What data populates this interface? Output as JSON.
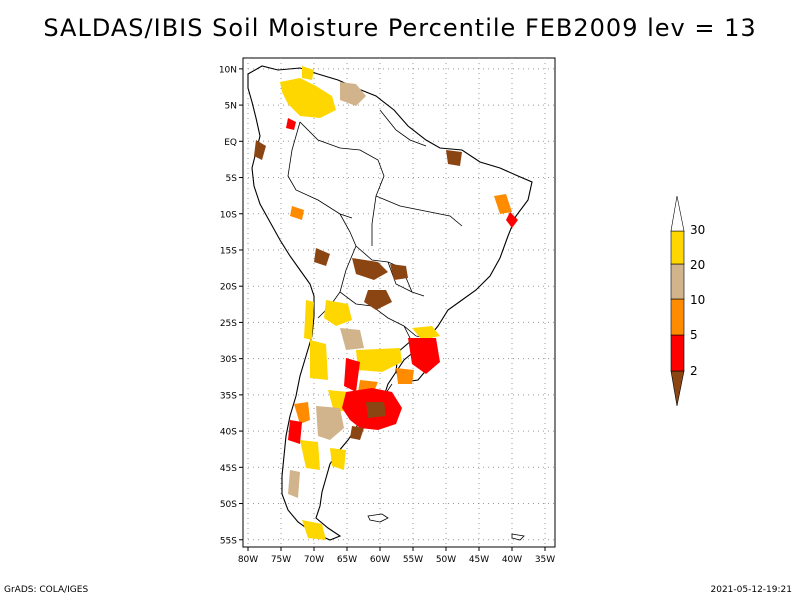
{
  "title": "SALDAS/IBIS Soil Moisture Percentile FEB2009 lev = 13",
  "lat_labels": [
    "10N",
    "5N",
    "EQ",
    "5S",
    "10S",
    "15S",
    "20S",
    "25S",
    "30S",
    "35S",
    "40S",
    "45S",
    "50S",
    "55S"
  ],
  "lat_values": [
    10,
    5,
    0,
    -5,
    -10,
    -15,
    -20,
    -25,
    -30,
    -35,
    -40,
    -45,
    -50,
    -55
  ],
  "lon_labels": [
    "80W",
    "75W",
    "70W",
    "65W",
    "60W",
    "55W",
    "50W",
    "45W",
    "40W",
    "35W"
  ],
  "lon_values": [
    -80,
    -75,
    -70,
    -65,
    -60,
    -55,
    -50,
    -45,
    -40,
    -35
  ],
  "legend": {
    "labels": [
      "2",
      "5",
      "10",
      "20",
      "30"
    ],
    "colors": [
      "#8b4513",
      "#ff0000",
      "#ff8c00",
      "#d2b48c",
      "#ffd700",
      "#ffffff"
    ]
  },
  "footer_left": "GrADS: COLA/IGES",
  "footer_right": "2021-05-12-19:21"
}
